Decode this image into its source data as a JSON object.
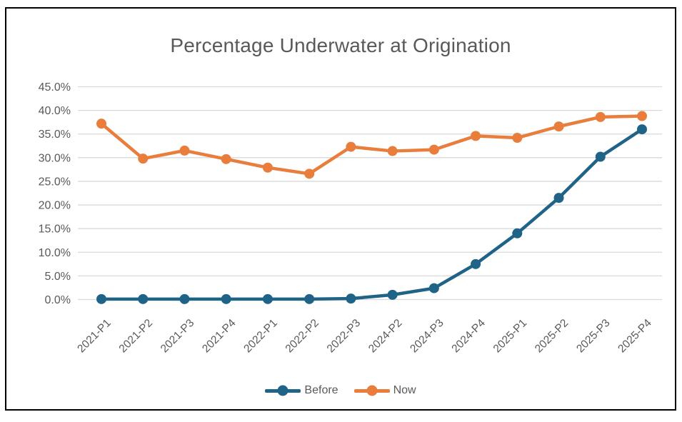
{
  "window": {
    "background_color": "#ffffff",
    "frame_border_color": "#000000"
  },
  "chart_data": {
    "type": "line",
    "title": "Percentage Underwater at Origination",
    "categories": [
      "2021-P1",
      "2021-P2",
      "2021-P3",
      "2021-P4",
      "2022-P1",
      "2022-P2",
      "2022-P3",
      "2024-P2",
      "2024-P3",
      "2024-P4",
      "2025-P1",
      "2025-P2",
      "2025-P3",
      "2025-P4"
    ],
    "series": [
      {
        "name": "Before",
        "color": "#1F6386",
        "values": [
          0.1,
          0.1,
          0.1,
          0.1,
          0.1,
          0.1,
          0.2,
          1.0,
          2.4,
          7.5,
          14.0,
          21.5,
          30.2,
          36.0
        ]
      },
      {
        "name": "Now",
        "color": "#E87D3C",
        "values": [
          37.2,
          29.8,
          31.5,
          29.7,
          27.9,
          26.6,
          32.3,
          31.4,
          31.7,
          34.6,
          34.2,
          36.6,
          38.6,
          38.8
        ]
      }
    ],
    "xlabel": "",
    "ylabel": "",
    "ylim": [
      0,
      45
    ],
    "y_tick_step": 5,
    "y_tick_labels": [
      "0.0%",
      "5.0%",
      "10.0%",
      "15.0%",
      "20.0%",
      "25.0%",
      "30.0%",
      "35.0%",
      "40.0%",
      "45.0%"
    ],
    "grid": true,
    "gridline_color": "#D9D9D9",
    "axis_text_color": "#595959",
    "x_tick_rotation_deg": 45,
    "legend_position": "bottom",
    "legend_labels": [
      "Before",
      "Now"
    ]
  }
}
